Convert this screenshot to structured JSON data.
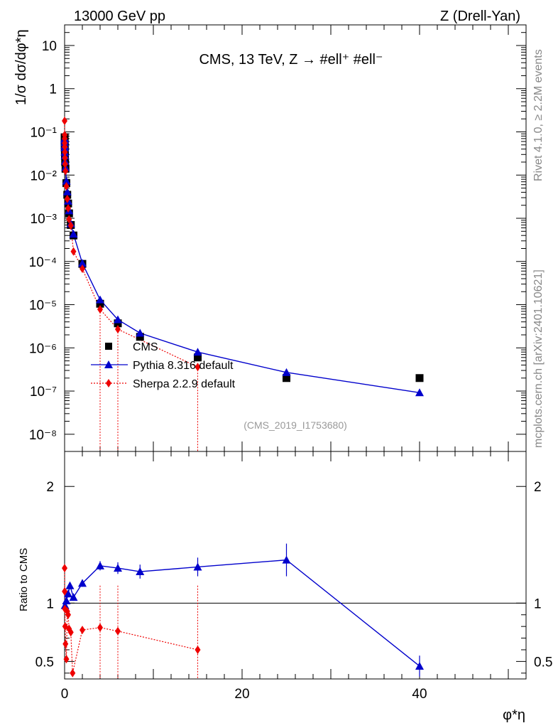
{
  "header": {
    "energy": "13000 GeV pp",
    "process": "Z (Drell-Yan)"
  },
  "side": {
    "rivet": "Rivet 4.1.0, ≥ 2.2M events",
    "source": "mcplots.cern.ch [arXiv:2401.10621]"
  },
  "colors": {
    "cms": "#000000",
    "pythia": "#0000cc",
    "sherpa": "#ee0000"
  },
  "chart_data": [
    {
      "type": "scatter",
      "scale": "log",
      "title": "CMS, 13 TeV, Z → #ell⁺ #ell⁻",
      "ylabel": "1/σ dσ/dφ*η",
      "analysis": "(CMS_2019_I1753680)",
      "xlim": [
        0,
        52
      ],
      "ylim": [
        4e-09,
        30
      ],
      "ytick_labels": [
        "10",
        "1",
        "10⁻¹",
        "10⁻²",
        "10⁻³",
        "10⁻⁴",
        "10⁻⁵",
        "10⁻⁶",
        "10⁻⁷",
        "10⁻⁸"
      ],
      "legend": [
        "CMS",
        "Pythia 8.316 default",
        "Sherpa 2.2.9 default"
      ],
      "series": [
        {
          "name": "CMS",
          "marker": "square",
          "x": [
            0.002,
            0.006,
            0.01,
            0.015,
            0.02,
            0.03,
            0.04,
            0.06,
            0.1,
            0.2,
            0.3,
            0.4,
            0.5,
            0.7,
            1.0,
            2.0,
            4.0,
            6.0,
            8.5,
            15,
            25,
            40
          ],
          "y": [
            0.075,
            0.07,
            0.06,
            0.05,
            0.045,
            0.035,
            0.028,
            0.02,
            0.014,
            0.0065,
            0.0035,
            0.0022,
            0.0013,
            0.0007,
            0.0004,
            8.8e-05,
            1.05e-05,
            3.7e-06,
            1.8e-06,
            6e-07,
            2e-07,
            2e-07
          ]
        },
        {
          "name": "Pythia 8.316 default",
          "marker": "triangle",
          "x": [
            0.002,
            0.006,
            0.01,
            0.015,
            0.02,
            0.03,
            0.04,
            0.06,
            0.1,
            0.2,
            0.3,
            0.4,
            0.5,
            0.7,
            1.0,
            2.0,
            4.0,
            6.0,
            8.5,
            15,
            25,
            40
          ],
          "y": [
            0.07,
            0.065,
            0.057,
            0.048,
            0.043,
            0.034,
            0.028,
            0.021,
            0.015,
            0.0073,
            0.0041,
            0.0025,
            0.0015,
            0.00075,
            0.00043,
            9.1e-05,
            1.3e-05,
            4.5e-06,
            2.2e-06,
            8e-07,
            2.7e-07,
            9.2e-08
          ]
        },
        {
          "name": "Sherpa 2.2.9 default",
          "marker": "diamond",
          "x": [
            0.002,
            0.006,
            0.01,
            0.015,
            0.02,
            0.03,
            0.04,
            0.06,
            0.1,
            0.2,
            0.3,
            0.4,
            0.5,
            0.7,
            1.0,
            2.0,
            4.0,
            6.0,
            15
          ],
          "y": [
            0.18,
            0.085,
            0.07,
            0.055,
            0.045,
            0.034,
            0.025,
            0.018,
            0.0125,
            0.0055,
            0.0028,
            0.0017,
            0.00095,
            0.00068,
            0.00017,
            6.8e-05,
            7.8e-06,
            2.7e-06,
            3.6e-07
          ]
        }
      ]
    },
    {
      "type": "scatter",
      "xlabel": "φ*η",
      "ylabel": "Ratio to CMS",
      "xlim": [
        0,
        52
      ],
      "ylim": [
        0.35,
        2.3
      ],
      "xtick_labels": [
        "0",
        "20",
        "40"
      ],
      "ytick_labels": [
        "0.5",
        "1",
        "2"
      ],
      "reference": 1,
      "series": [
        {
          "name": "Pythia 8.316 default",
          "x": [
            0.05,
            0.2,
            0.4,
            0.6,
            1.0,
            2.0,
            4.0,
            6.0,
            8.5,
            15,
            25,
            40
          ],
          "y": [
            0.98,
            1.02,
            1.08,
            1.15,
            1.05,
            1.17,
            1.32,
            1.3,
            1.27,
            1.31,
            1.37,
            0.46
          ],
          "err": [
            0.02,
            0.03,
            0.03,
            0.03,
            0.03,
            0.03,
            0.04,
            0.05,
            0.06,
            0.08,
            0.14,
            0.09
          ]
        },
        {
          "name": "Sherpa 2.2.9 default",
          "x": [
            0.002,
            0.01,
            0.03,
            0.06,
            0.1,
            0.2,
            0.3,
            0.4,
            0.5,
            0.7,
            0.9,
            2.0,
            4.0,
            6.0,
            15
          ],
          "y": [
            1.3,
            1.1,
            0.95,
            0.8,
            0.65,
            0.52,
            0.93,
            0.9,
            0.78,
            0.75,
            0.4,
            0.77,
            0.79,
            0.76,
            0.6
          ]
        }
      ]
    }
  ]
}
